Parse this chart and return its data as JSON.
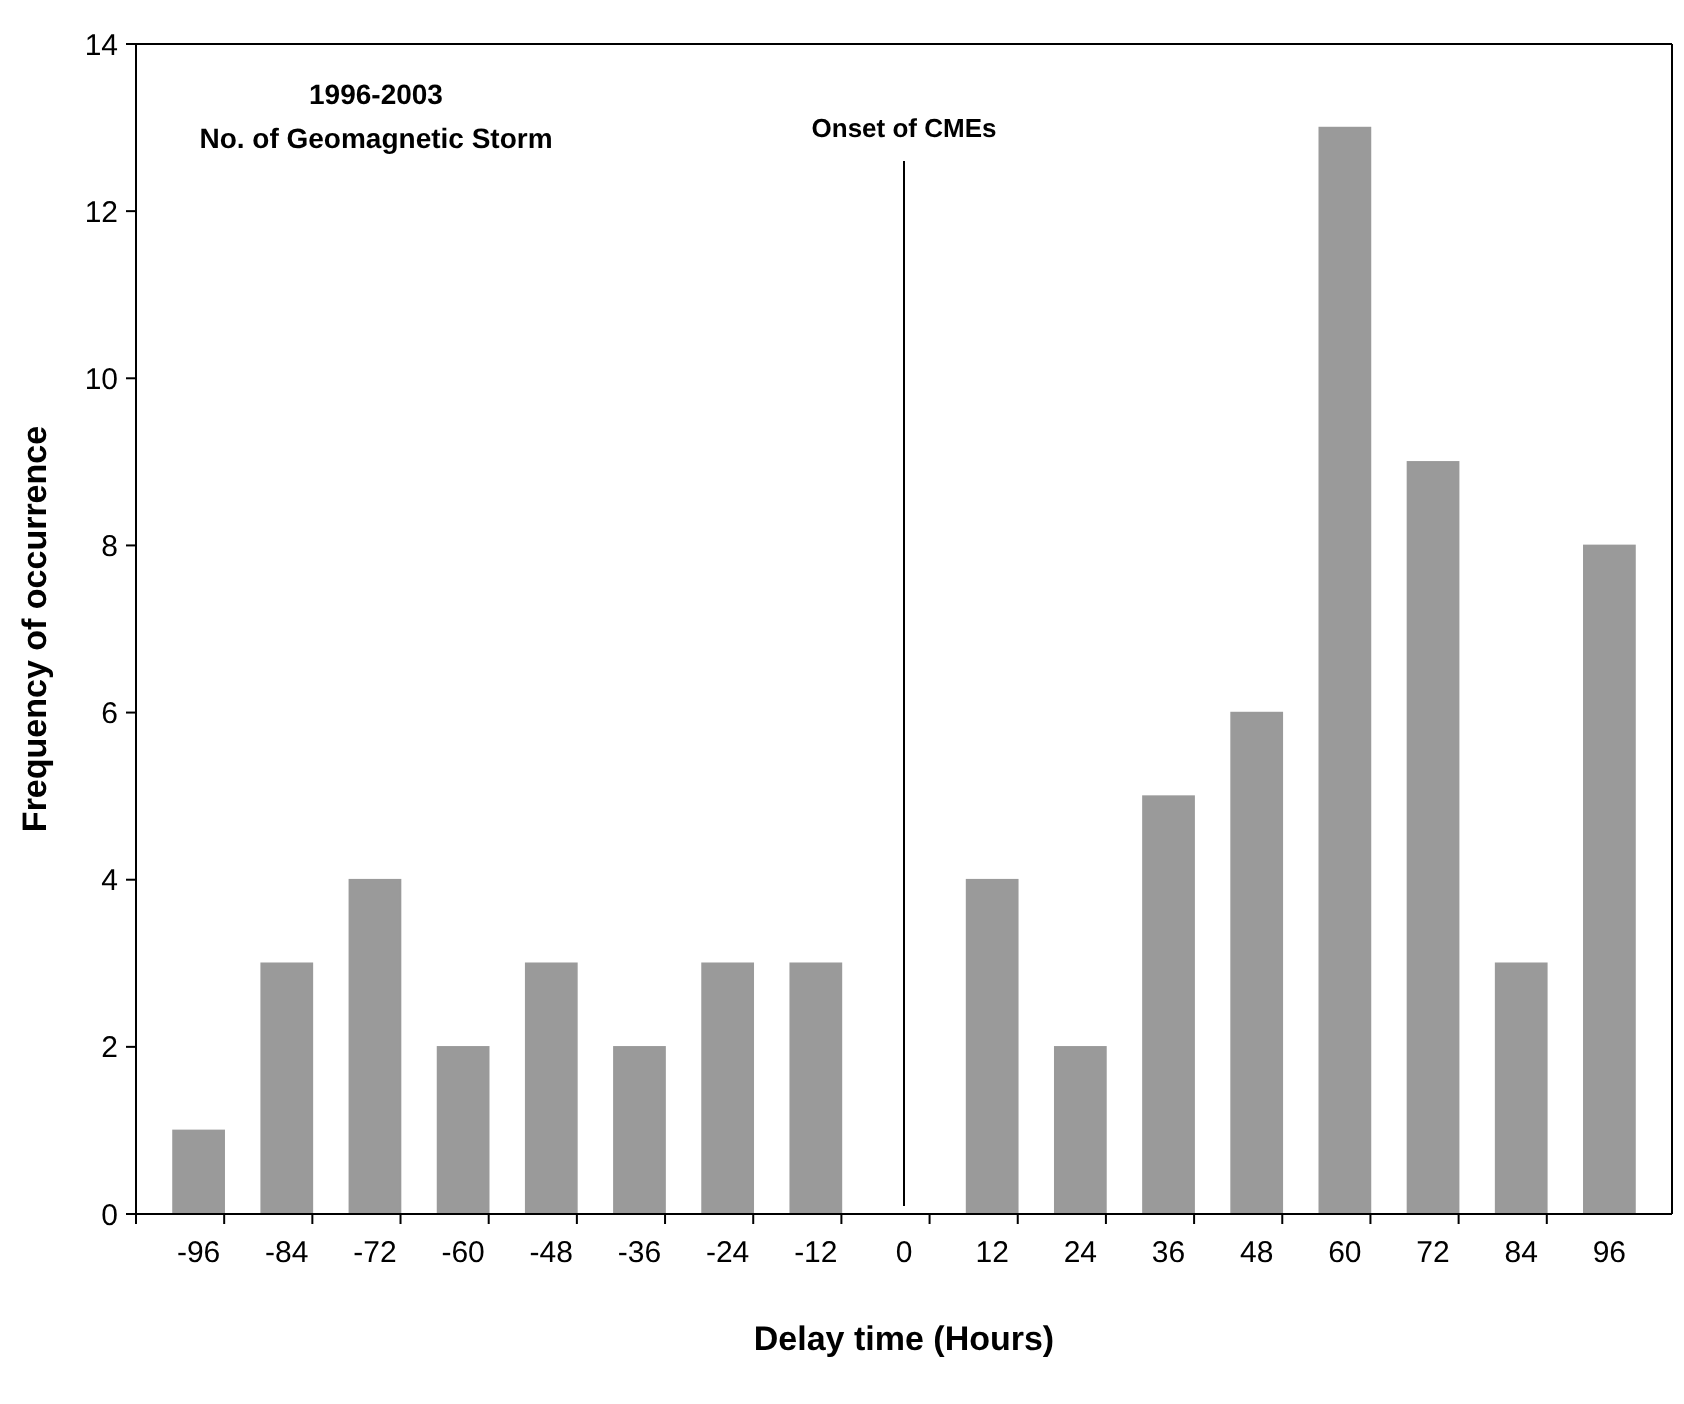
{
  "chart_data": {
    "type": "bar",
    "xlabel": "Delay time (Hours)",
    "ylabel": "Frequency of occurrence",
    "categories": [
      "-96",
      "-84",
      "-72",
      "-60",
      "-48",
      "-36",
      "-24",
      "-12",
      "0",
      "12",
      "24",
      "36",
      "48",
      "60",
      "72",
      "84",
      "96"
    ],
    "values": [
      1,
      3,
      4,
      2,
      3,
      2,
      3,
      3,
      0,
      4,
      2,
      5,
      6,
      13,
      9,
      3,
      8
    ],
    "color": "#9a9a9a",
    "ylim": [
      0,
      14
    ],
    "yticks": [
      0,
      2,
      4,
      6,
      8,
      10,
      12,
      14
    ],
    "grid": false,
    "ref_lines": [
      {
        "axis": "x",
        "value": "0",
        "label": "Onset of CMEs",
        "color": "#000000"
      }
    ],
    "annotations": [
      "1996-2003",
      "No. of Geomagnetic Storm"
    ]
  }
}
